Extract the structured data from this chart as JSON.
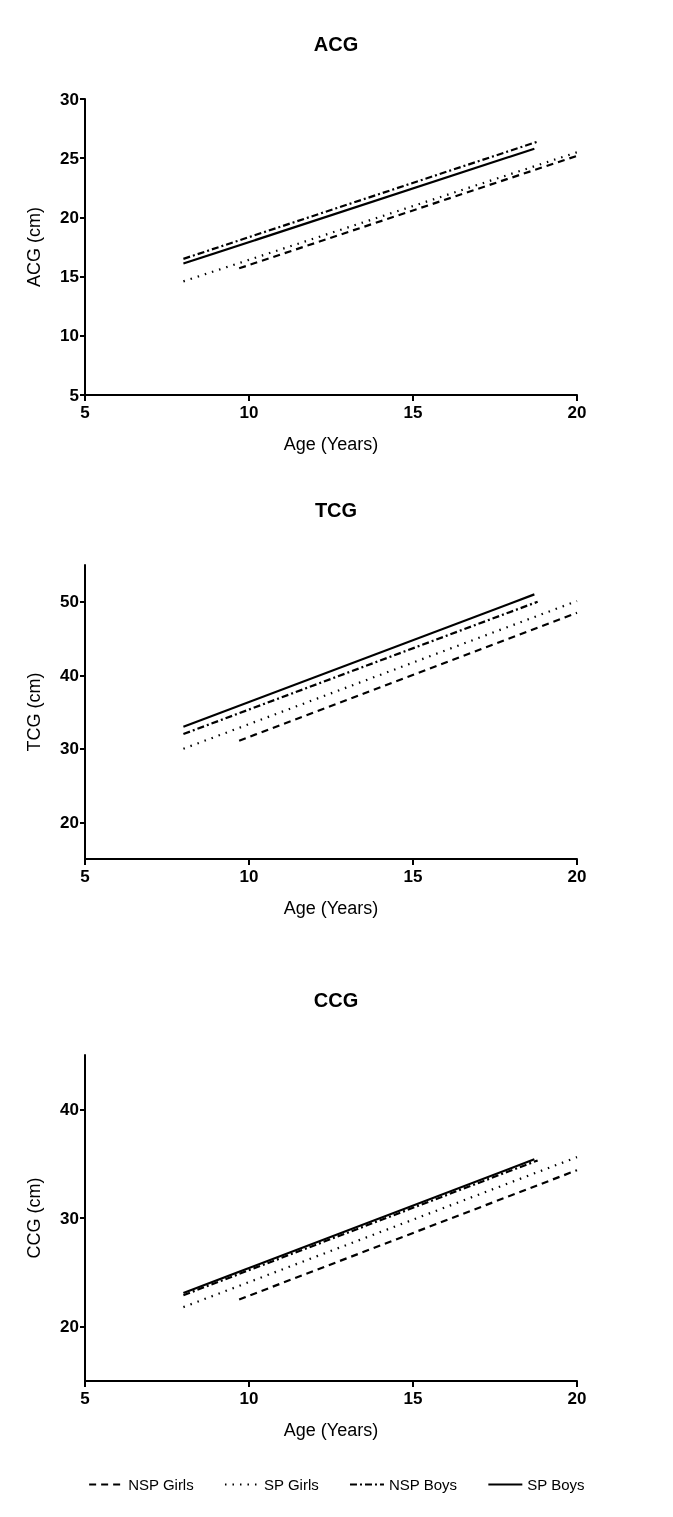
{
  "chart_data": [
    {
      "type": "line",
      "title": "ACG",
      "xlabel": "Age (Years)",
      "ylabel": "ACG (cm)",
      "xlim": [
        5,
        20
      ],
      "xticks": [
        5,
        10,
        15,
        20
      ],
      "ylim": [
        5,
        30
      ],
      "yticks": [
        5,
        10,
        15,
        20,
        25,
        30
      ],
      "grid": false,
      "legend": false,
      "marker": "none",
      "series": [
        {
          "color": "#000000",
          "line_style": "dashed",
          "x": [
            9.7,
            20
          ],
          "values": [
            15.7,
            25.2
          ]
        },
        {
          "color": "#000000",
          "line_style": "dotted",
          "x": [
            8,
            20
          ],
          "values": [
            14.6,
            25.5
          ]
        },
        {
          "color": "#000000",
          "line_style": "dashdot",
          "x": [
            8,
            18.8
          ],
          "values": [
            16.5,
            26.4
          ]
        },
        {
          "color": "#000000",
          "line_style": "solid",
          "x": [
            8,
            18.7
          ],
          "values": [
            16.1,
            25.8
          ]
        }
      ]
    },
    {
      "type": "line",
      "title": "TCG",
      "xlabel": "Age (Years)",
      "ylabel": "TCG (cm)",
      "xlim": [
        5,
        20
      ],
      "xticks": [
        5,
        10,
        15,
        20
      ],
      "ylim": [
        15,
        55
      ],
      "yticks": [
        20,
        30,
        40,
        50
      ],
      "grid": false,
      "legend": false,
      "marker": "none",
      "series": [
        {
          "color": "#000000",
          "line_style": "dashed",
          "x": [
            9.7,
            20
          ],
          "values": [
            31.1,
            48.5
          ]
        },
        {
          "color": "#000000",
          "line_style": "dotted",
          "x": [
            8,
            20
          ],
          "values": [
            30.0,
            50.1
          ]
        },
        {
          "color": "#000000",
          "line_style": "dashdot",
          "x": [
            8,
            18.8
          ],
          "values": [
            32.0,
            50.0
          ]
        },
        {
          "color": "#000000",
          "line_style": "solid",
          "x": [
            8,
            18.7
          ],
          "values": [
            33.0,
            51.0
          ]
        }
      ]
    },
    {
      "type": "line",
      "title": "CCG",
      "xlabel": "Age (Years)",
      "ylabel": "CCG (cm)",
      "xlim": [
        5,
        20
      ],
      "xticks": [
        5,
        10,
        15,
        20
      ],
      "ylim": [
        15,
        45
      ],
      "yticks": [
        20,
        30,
        40
      ],
      "grid": false,
      "legend": "bottom",
      "marker": "none",
      "series": [
        {
          "name": "NSP Girls",
          "color": "#000000",
          "line_style": "dashed",
          "x": [
            9.7,
            20
          ],
          "values": [
            22.5,
            34.4
          ]
        },
        {
          "name": "SP Girls",
          "color": "#000000",
          "line_style": "dotted",
          "x": [
            8,
            20
          ],
          "values": [
            21.8,
            35.6
          ]
        },
        {
          "name": "NSP Boys",
          "color": "#000000",
          "line_style": "dashdot",
          "x": [
            8,
            18.8
          ],
          "values": [
            22.9,
            35.3
          ]
        },
        {
          "name": "SP Boys",
          "color": "#000000",
          "line_style": "solid",
          "x": [
            8,
            18.7
          ],
          "values": [
            23.1,
            35.4
          ]
        }
      ]
    }
  ]
}
